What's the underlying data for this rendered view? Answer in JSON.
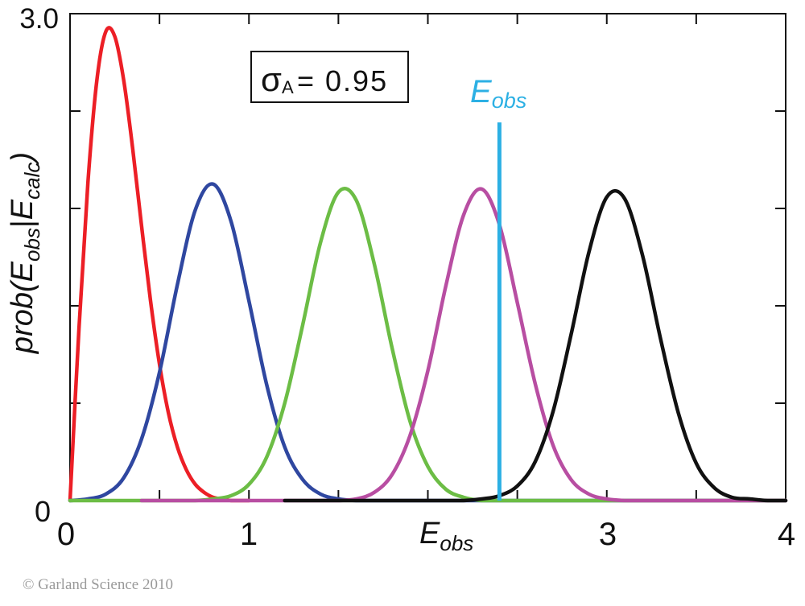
{
  "figure": {
    "sigma_box": {
      "sigma": "σ",
      "sub": "A",
      "value_text": "= 0.95"
    },
    "eobs_marker": {
      "main": "E",
      "sub": "obs"
    },
    "x_axis_label": {
      "main": "E",
      "sub": "obs"
    },
    "y_axis_label": {
      "prefix": "prob(",
      "e1": "E",
      "sub1": "obs",
      "bar": "|",
      "e2": "E",
      "sub2": "calc",
      "suffix": ")"
    },
    "x_tick_labels": [
      {
        "value": 0,
        "label": "0"
      },
      {
        "value": 1,
        "label": "1"
      },
      {
        "value": 3,
        "label": "3"
      },
      {
        "value": 4,
        "label": "4"
      }
    ],
    "y_tick_labels": [
      {
        "value": 3.0,
        "label": "3.0"
      },
      {
        "value": 0,
        "label": "0"
      }
    ],
    "copyright": "© Garland Science 2010",
    "colors": {
      "frame": "#111111",
      "eobs_line": "#2cb0e4",
      "copyright": "#9a9a9a"
    }
  },
  "chart_data": {
    "type": "line",
    "title": "",
    "xlabel": "E_obs",
    "ylabel": "prob(E_obs|E_calc)",
    "xlim": [
      0,
      4
    ],
    "ylim": [
      0,
      3.0
    ],
    "x_ticks": [
      0,
      0.5,
      1,
      1.5,
      2,
      2.5,
      3,
      3.5,
      4
    ],
    "y_ticks": [
      0,
      0.6,
      1.2,
      1.8,
      2.4,
      3.0
    ],
    "grid": false,
    "legend": null,
    "annotations": [
      {
        "type": "text-box",
        "text": "σA = 0.95"
      },
      {
        "type": "vline",
        "label": "E_obs",
        "x": 2.4,
        "y_from": 0,
        "y_to": 2.33,
        "color": "#2cb0e4"
      }
    ],
    "series": [
      {
        "name": "red",
        "color": "#ec1f26",
        "x_start": 0,
        "x_step": 0.05,
        "values": [
          0,
          1.06,
          1.96,
          2.59,
          2.89,
          2.86,
          2.59,
          2.17,
          1.69,
          1.23,
          0.84,
          0.54,
          0.33,
          0.19,
          0.1,
          0.05,
          0.02,
          0.01,
          0,
          0,
          0
        ]
      },
      {
        "name": "blue",
        "color": "#2f47a0",
        "x_start": 0,
        "x_step": 0.1,
        "values": [
          0,
          0.01,
          0.04,
          0.14,
          0.38,
          0.79,
          1.33,
          1.79,
          1.95,
          1.72,
          1.23,
          0.71,
          0.33,
          0.13,
          0.04,
          0.01,
          0,
          0,
          0,
          0,
          0,
          0,
          0,
          0,
          0,
          0,
          0,
          0,
          0,
          0,
          0,
          0,
          0,
          0,
          0,
          0,
          0,
          0,
          0,
          0,
          0
        ]
      },
      {
        "name": "green",
        "color": "#6cbd45",
        "x_start": 0,
        "x_step": 0.1,
        "values": [
          0,
          0,
          0,
          0,
          0,
          0,
          0,
          0,
          0.01,
          0.03,
          0.1,
          0.27,
          0.6,
          1.08,
          1.59,
          1.9,
          1.85,
          1.46,
          0.94,
          0.49,
          0.21,
          0.07,
          0.02,
          0,
          0,
          0,
          0,
          0,
          0,
          0,
          0,
          0,
          0,
          0,
          0,
          0,
          0,
          0,
          0,
          0,
          0
        ]
      },
      {
        "name": "magenta",
        "color": "#b84ea2",
        "x_start": 0.4,
        "x_step": 0.1,
        "values": [
          0,
          0,
          0,
          0,
          0,
          0,
          0,
          0,
          0,
          0,
          0,
          0,
          0.01,
          0.05,
          0.16,
          0.4,
          0.8,
          1.32,
          1.76,
          1.92,
          1.7,
          1.22,
          0.72,
          0.34,
          0.13,
          0.04,
          0.01,
          0,
          0,
          0,
          0,
          0,
          0,
          0,
          0,
          0,
          0
        ]
      },
      {
        "name": "black",
        "color": "#111111",
        "x_start": 1.2,
        "x_step": 0.1,
        "values": [
          0,
          0,
          0,
          0,
          0,
          0,
          0,
          0,
          0,
          0,
          0,
          0.01,
          0.03,
          0.09,
          0.24,
          0.55,
          1.02,
          1.53,
          1.87,
          1.86,
          1.51,
          1.0,
          0.54,
          0.23,
          0.08,
          0.02,
          0.01,
          0,
          0
        ]
      }
    ]
  }
}
